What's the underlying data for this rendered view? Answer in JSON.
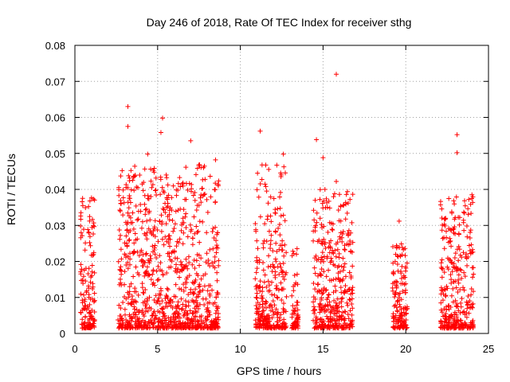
{
  "chart_data": {
    "type": "scatter",
    "title": "Day 246 of 2018, Rate Of TEC Index for receiver sthg",
    "xlabel": "GPS time / hours",
    "ylabel": "ROTI / TECUs",
    "xlim": [
      0,
      25
    ],
    "ylim": [
      0,
      0.08
    ],
    "xticks": [
      0,
      5,
      10,
      15,
      20,
      25
    ],
    "yticks": [
      0,
      0.01,
      0.02,
      0.03,
      0.04,
      0.05,
      0.06,
      0.07,
      0.08
    ],
    "xtick_labels": [
      "0",
      "5",
      "10",
      "15",
      "20",
      "25"
    ],
    "ytick_labels": [
      "0",
      "0.01",
      "0.02",
      "0.03",
      "0.04",
      "0.05",
      "0.06",
      "0.07",
      "0.08"
    ],
    "grid": true,
    "marker": "+",
    "color": "#ff0000",
    "notable_points": [
      {
        "x": 15.8,
        "y": 0.072
      },
      {
        "x": 3.2,
        "y": 0.063
      },
      {
        "x": 3.2,
        "y": 0.0575
      },
      {
        "x": 5.3,
        "y": 0.0598
      },
      {
        "x": 5.2,
        "y": 0.0558
      },
      {
        "x": 7.0,
        "y": 0.0535
      },
      {
        "x": 11.2,
        "y": 0.0562
      },
      {
        "x": 12.6,
        "y": 0.0498
      },
      {
        "x": 14.6,
        "y": 0.0538
      },
      {
        "x": 15.0,
        "y": 0.0488
      },
      {
        "x": 15.8,
        "y": 0.0422
      },
      {
        "x": 23.1,
        "y": 0.0552
      },
      {
        "x": 23.1,
        "y": 0.0502
      },
      {
        "x": 4.4,
        "y": 0.0498
      },
      {
        "x": 8.5,
        "y": 0.0482
      },
      {
        "x": 19.6,
        "y": 0.0312
      },
      {
        "x": 24.0,
        "y": 0.0385
      }
    ],
    "clusters": [
      {
        "x_range": [
          0.3,
          1.2
        ],
        "peak": 0.038
      },
      {
        "x_range": [
          2.6,
          8.7
        ],
        "peak": 0.047
      },
      {
        "x_range": [
          10.9,
          12.8
        ],
        "peak": 0.048
      },
      {
        "x_range": [
          13.1,
          13.5
        ],
        "peak": 0.024
      },
      {
        "x_range": [
          14.4,
          16.8
        ],
        "peak": 0.04
      },
      {
        "x_range": [
          19.2,
          20.1
        ],
        "peak": 0.025
      },
      {
        "x_range": [
          22.1,
          24.1
        ],
        "peak": 0.038
      }
    ]
  }
}
